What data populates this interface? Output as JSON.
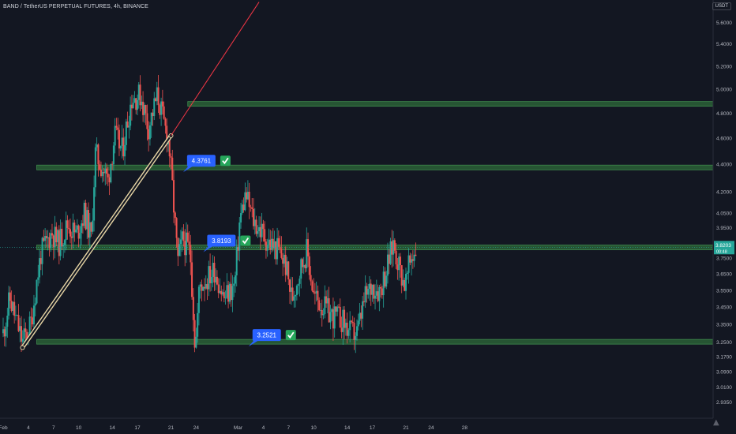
{
  "header": {
    "title": "BAND / TetherUS PERPETUAL FUTURES, 4h, BINANCE",
    "currency": "USDT"
  },
  "colors": {
    "background": "#131722",
    "up": "#26a69a",
    "down": "#ef5350",
    "zone": "#2e6b3a",
    "trendline_outer": "#e8d6a6",
    "ray": "#f23645",
    "callout": "#2962ff",
    "check": "#26a65b",
    "axis_text": "#b2b5be",
    "grid": "#1e222d"
  },
  "chart_data": {
    "type": "candlestick",
    "symbol": "BAND / TetherUS PERPETUAL FUTURES",
    "interval": "4h",
    "exchange": "BINANCE",
    "y_axis": {
      "scale": "log",
      "range": [
        2.89,
        5.75
      ],
      "tick_labels": [
        "5.6000",
        "5.4000",
        "5.2000",
        "5.0000",
        "4.8000",
        "4.6000",
        "4.4000",
        "4.2000",
        "4.0500",
        "3.9500",
        "3.8500",
        "3.7500",
        "3.6500",
        "3.5500",
        "3.4500",
        "3.3500",
        "3.2500",
        "3.1700",
        "3.0900",
        "3.0100",
        "2.9350"
      ]
    },
    "x_axis": {
      "day_range": [
        1,
        81
      ],
      "ticks": [
        {
          "label": "Feb",
          "day": 1
        },
        {
          "label": "4",
          "day": 4
        },
        {
          "label": "7",
          "day": 7
        },
        {
          "label": "10",
          "day": 10
        },
        {
          "label": "14",
          "day": 14
        },
        {
          "label": "17",
          "day": 17
        },
        {
          "label": "21",
          "day": 21
        },
        {
          "label": "24",
          "day": 24
        },
        {
          "label": "Mar",
          "day": 29
        },
        {
          "label": "4",
          "day": 32
        },
        {
          "label": "7",
          "day": 35
        },
        {
          "label": "10",
          "day": 38
        },
        {
          "label": "14",
          "day": 42
        },
        {
          "label": "17",
          "day": 45
        },
        {
          "label": "21",
          "day": 49
        },
        {
          "label": "24",
          "day": 52
        },
        {
          "label": "28",
          "day": 56
        }
      ]
    },
    "price_path": [
      [
        1.0,
        3.3
      ],
      [
        1.8,
        3.5
      ],
      [
        2.5,
        3.38
      ],
      [
        3.3,
        3.25
      ],
      [
        4.3,
        3.35
      ],
      [
        5.5,
        3.78
      ],
      [
        6.8,
        3.92
      ],
      [
        7.6,
        3.84
      ],
      [
        8.7,
        3.97
      ],
      [
        9.7,
        3.9
      ],
      [
        10.7,
        4.05
      ],
      [
        11.5,
        3.88
      ],
      [
        12.0,
        4.48
      ],
      [
        12.6,
        4.4
      ],
      [
        13.5,
        4.28
      ],
      [
        14.3,
        4.62
      ],
      [
        15.2,
        4.5
      ],
      [
        16.3,
        4.92
      ],
      [
        17.4,
        4.95
      ],
      [
        18.3,
        4.68
      ],
      [
        19.4,
        4.95
      ],
      [
        20.2,
        4.7
      ],
      [
        20.7,
        4.6
      ],
      [
        21.2,
        4.2
      ],
      [
        21.8,
        3.72
      ],
      [
        22.4,
        3.88
      ],
      [
        23.3,
        3.78
      ],
      [
        23.9,
        3.2
      ],
      [
        24.4,
        3.58
      ],
      [
        25.3,
        3.62
      ],
      [
        26.2,
        3.68
      ],
      [
        27.3,
        3.5
      ],
      [
        28.6,
        3.58
      ],
      [
        29.2,
        4.0
      ],
      [
        29.9,
        4.18
      ],
      [
        30.8,
        4.0
      ],
      [
        31.8,
        3.92
      ],
      [
        32.6,
        3.85
      ],
      [
        33.8,
        3.8
      ],
      [
        34.6,
        3.72
      ],
      [
        35.4,
        3.5
      ],
      [
        36.4,
        3.68
      ],
      [
        37.2,
        3.8
      ],
      [
        38.0,
        3.52
      ],
      [
        39.0,
        3.46
      ],
      [
        40.2,
        3.4
      ],
      [
        41.3,
        3.38
      ],
      [
        42.4,
        3.3
      ],
      [
        43.2,
        3.3
      ],
      [
        44.1,
        3.5
      ],
      [
        45.0,
        3.58
      ],
      [
        45.9,
        3.55
      ],
      [
        46.8,
        3.7
      ],
      [
        47.5,
        3.85
      ],
      [
        48.2,
        3.7
      ],
      [
        48.9,
        3.58
      ],
      [
        49.6,
        3.75
      ],
      [
        50.3,
        3.82
      ]
    ],
    "last_price": "3.8203",
    "countdown": "00:48",
    "support_resistance_levels": [
      4.8764,
      4.3761,
      3.8193,
      3.2521
    ],
    "callouts": [
      {
        "value": "4.3761",
        "verified": true
      },
      {
        "value": "3.8193",
        "verified": true
      },
      {
        "value": "3.2521",
        "verified": true
      }
    ],
    "trendline": {
      "from": {
        "day": 3.3,
        "price": 3.22
      },
      "to": {
        "day": 21.0,
        "price": 4.62
      }
    },
    "ray": {
      "from": {
        "day": 21.0,
        "price": 4.62
      },
      "to": {
        "day": 31.5,
        "price": 5.8
      }
    },
    "grid": false,
    "legend": "none"
  }
}
